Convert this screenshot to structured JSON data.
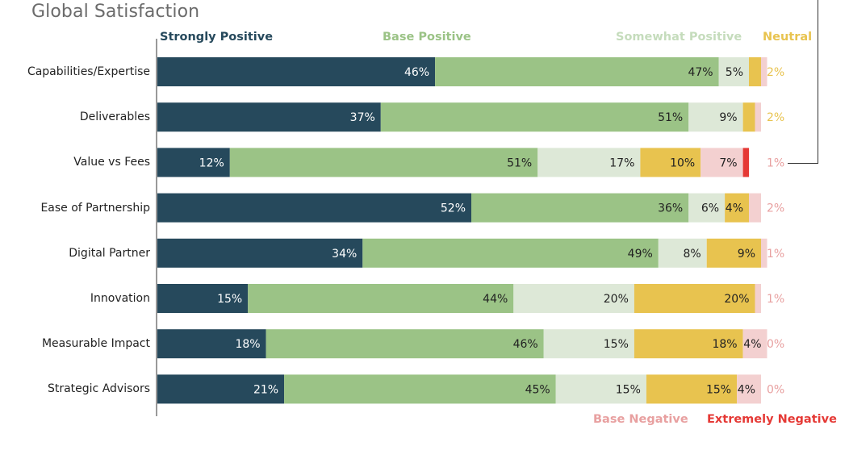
{
  "chart_data": {
    "type": "bar",
    "orientation": "horizontal",
    "stacked": true,
    "title": "Global Satisfaction",
    "categories": [
      "Capabilities/Expertise",
      "Deliverables",
      "Value vs Fees",
      "Ease of Partnership",
      "Digital Partner",
      "Innovation",
      "Measurable Impact",
      "Strategic Advisors"
    ],
    "series": [
      {
        "name": "Strongly Positive",
        "color": "#26495c",
        "label_color": "#ffffff",
        "values": [
          46,
          37,
          12,
          52,
          34,
          15,
          18,
          21
        ]
      },
      {
        "name": "Base Positive",
        "color": "#9bc386",
        "label_color": "#222222",
        "values": [
          47,
          51,
          51,
          36,
          49,
          44,
          46,
          45
        ]
      },
      {
        "name": "Somewhat Positive",
        "color": "#dde8d7",
        "label_color": "#222222",
        "values": [
          5,
          9,
          17,
          6,
          8,
          20,
          15,
          15
        ]
      },
      {
        "name": "Neutral",
        "color": "#e8c34f",
        "label_color": "#222222",
        "values": [
          2,
          2,
          10,
          4,
          9,
          20,
          18,
          15
        ]
      },
      {
        "name": "Base Negative",
        "color": "#f3d0d0",
        "label_color": "#222222",
        "values": [
          1,
          1,
          7,
          2,
          1,
          1,
          4,
          4
        ]
      },
      {
        "name": "Extremely Negative",
        "color": "#e53935",
        "label_color": "#222222",
        "values": [
          0,
          0,
          1,
          0,
          0,
          0,
          0,
          0
        ]
      }
    ],
    "labels": [
      [
        "46%",
        "47%",
        "5%",
        "",
        "",
        ""
      ],
      [
        "37%",
        "51%",
        "9%",
        "",
        "",
        ""
      ],
      [
        "12%",
        "51%",
        "17%",
        "10%",
        "7%",
        ""
      ],
      [
        "52%",
        "36%",
        "6%",
        "4%",
        "",
        ""
      ],
      [
        "34%",
        "49%",
        "8%",
        "9%",
        "",
        ""
      ],
      [
        "15%",
        "44%",
        "20%",
        "20%",
        "",
        ""
      ],
      [
        "18%",
        "46%",
        "15%",
        "18%",
        "4%",
        ""
      ],
      [
        "21%",
        "45%",
        "15%",
        "15%",
        "4%",
        ""
      ]
    ],
    "outside_labels": [
      "2%",
      "2%",
      "1%",
      "2%",
      "1%",
      "1%",
      "0%",
      "0%"
    ],
    "outside_label_color": "#e8a0a0",
    "neutral_outside_color": "#e8c34f",
    "xlim": [
      0,
      100
    ],
    "legend": {
      "top": [
        "Strongly Positive",
        "Base Positive",
        "Somewhat Positive",
        "Neutral"
      ],
      "bottom": [
        "Base Negative",
        "Extremely Negative"
      ],
      "colors": {
        "Strongly Positive": "#26495c",
        "Base Positive": "#9bc386",
        "Somewhat Positive": "#c5dcbc",
        "Neutral": "#e8c34f",
        "Base Negative": "#e8a0a0",
        "Extremely Negative": "#e53935"
      }
    }
  }
}
